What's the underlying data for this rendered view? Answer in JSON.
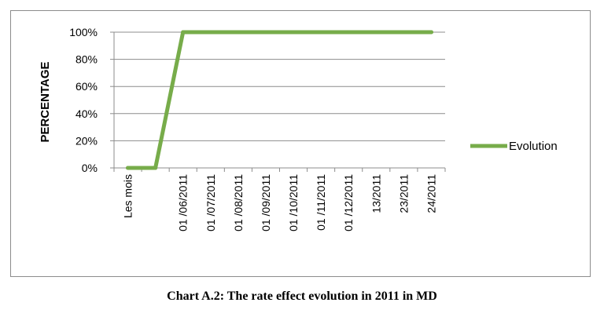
{
  "caption": "Chart A.2: The rate effect evolution in 2011 in MD",
  "chart_data": {
    "type": "line",
    "categories": [
      "Les mois",
      "",
      "01 /06/2011",
      "01 /07/2011",
      "01 /08/2011",
      "01 /09/2011",
      "01 /10/2011",
      "01 /11/2011",
      "01 /12/2011",
      "13/2011",
      "23/2011",
      "24/2011"
    ],
    "series": [
      {
        "name": "Evolution",
        "values": [
          0,
          0,
          100,
          100,
          100,
          100,
          100,
          100,
          100,
          100,
          100,
          100
        ]
      }
    ],
    "ylabel": "PERCENTAGE",
    "xlabel": "",
    "ylim": [
      0,
      100
    ],
    "yticks": [
      0,
      20,
      40,
      60,
      80,
      100
    ],
    "ytick_labels": [
      "0%",
      "20%",
      "40%",
      "60%",
      "80%",
      "100%"
    ],
    "grid": true,
    "legend": "right",
    "colors": {
      "line": "#77ac4a",
      "grid": "#8c8c8c",
      "axis": "#8c8c8c"
    }
  }
}
